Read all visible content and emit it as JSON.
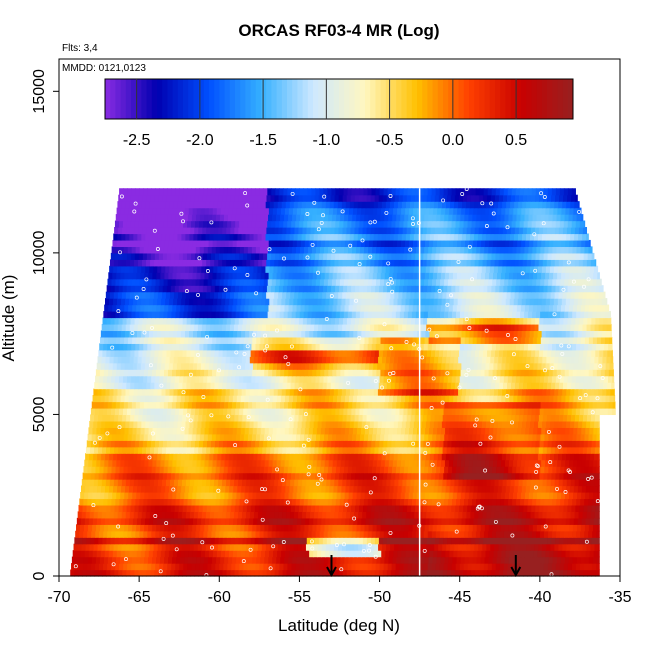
{
  "chart_data": {
    "type": "heatmap",
    "title": "ORCAS RF03-4 MR (Log)",
    "flights_note": "Flts: 3,4",
    "date_note": "MMDD: 0121,0123",
    "xlabel": "Latitude (deg N)",
    "ylabel": "Altitude (m)",
    "xlim": [
      -70,
      -35
    ],
    "ylim": [
      0,
      16000
    ],
    "x_ticks": [
      -70,
      -65,
      -60,
      -55,
      -50,
      -45,
      -40,
      -35
    ],
    "x_tick_labels": [
      "-70",
      "-65",
      "-60",
      "-55",
      "-50",
      "-45",
      "-40",
      "-35"
    ],
    "y_ticks": [
      0,
      5000,
      10000,
      15000
    ],
    "y_tick_labels": [
      "0",
      "5000",
      "10000",
      "15000"
    ],
    "colorbar": {
      "range": [
        -2.75,
        0.95
      ],
      "ticks": [
        -2.5,
        -2.0,
        -1.5,
        -1.0,
        -0.5,
        0.0,
        0.5
      ],
      "tick_labels": [
        "-2.5",
        "-2.0",
        "-1.5",
        "-1.0",
        "-0.5",
        "0.0",
        "0.5"
      ],
      "colors": [
        "#8a2be2",
        "#0000b0",
        "#0050ff",
        "#35b0ff",
        "#cde8ff",
        "#fff7c0",
        "#ffc000",
        "#ff4000",
        "#c80000",
        "#982020"
      ]
    },
    "flight_divider_lat": -47.5,
    "markers_latitude": [
      -53,
      -41.5
    ],
    "field_description": "Log mixing ratio vs latitude and altitude; lowest values (~-2.7) at high altitude in the south, highest values (~0.8) near the surface in the north"
  },
  "colors": {
    "background": "#ffffff",
    "axis": "#000000",
    "data_points": "#ffffff"
  }
}
